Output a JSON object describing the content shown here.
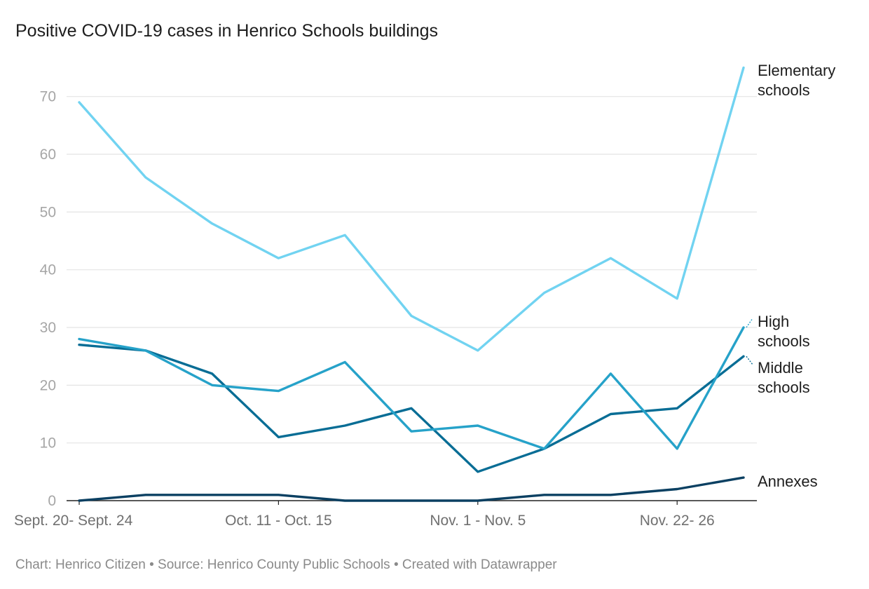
{
  "title": "Positive COVID-19 cases in Henrico Schools buildings",
  "footer": "Chart: Henrico Citizen • Source: Henrico County Public Schools • Created with Datawrapper",
  "colors": {
    "elementary": "#71d3f1",
    "high": "#26a2c9",
    "middle": "#086d95",
    "annexes": "#0b4062",
    "grid": "#e4e4e4",
    "axis": "#222222"
  },
  "chart_data": {
    "type": "line",
    "title": "Positive COVID-19 cases in Henrico Schools buildings",
    "x_tick_labels": [
      "Sept. 20- Sept. 24",
      "Oct. 11 - Oct. 15",
      "Nov. 1 - Nov. 5",
      "Nov. 22- 26"
    ],
    "x_tick_indices": [
      0,
      3,
      6,
      9
    ],
    "point_count": 11,
    "ylim": [
      0,
      75
    ],
    "yticks": [
      0,
      10,
      20,
      30,
      40,
      50,
      60,
      70
    ],
    "grid": true,
    "legend": "direct labels at right end of lines",
    "series": [
      {
        "key": "elementary",
        "label_lines": [
          "Elementary",
          "schools"
        ],
        "values": [
          69,
          56,
          48,
          42,
          46,
          32,
          26,
          36,
          42,
          35,
          75
        ]
      },
      {
        "key": "high",
        "label_lines": [
          "High",
          "schools"
        ],
        "values": [
          28,
          26,
          20,
          19,
          24,
          12,
          13,
          9,
          22,
          9,
          30
        ]
      },
      {
        "key": "middle",
        "label_lines": [
          "Middle",
          "schools"
        ],
        "values": [
          27,
          26,
          22,
          11,
          13,
          16,
          5,
          9,
          15,
          16,
          25
        ]
      },
      {
        "key": "annexes",
        "label_lines": [
          "Annexes"
        ],
        "values": [
          0,
          1,
          1,
          1,
          0,
          0,
          0,
          1,
          1,
          2,
          4
        ]
      }
    ]
  }
}
